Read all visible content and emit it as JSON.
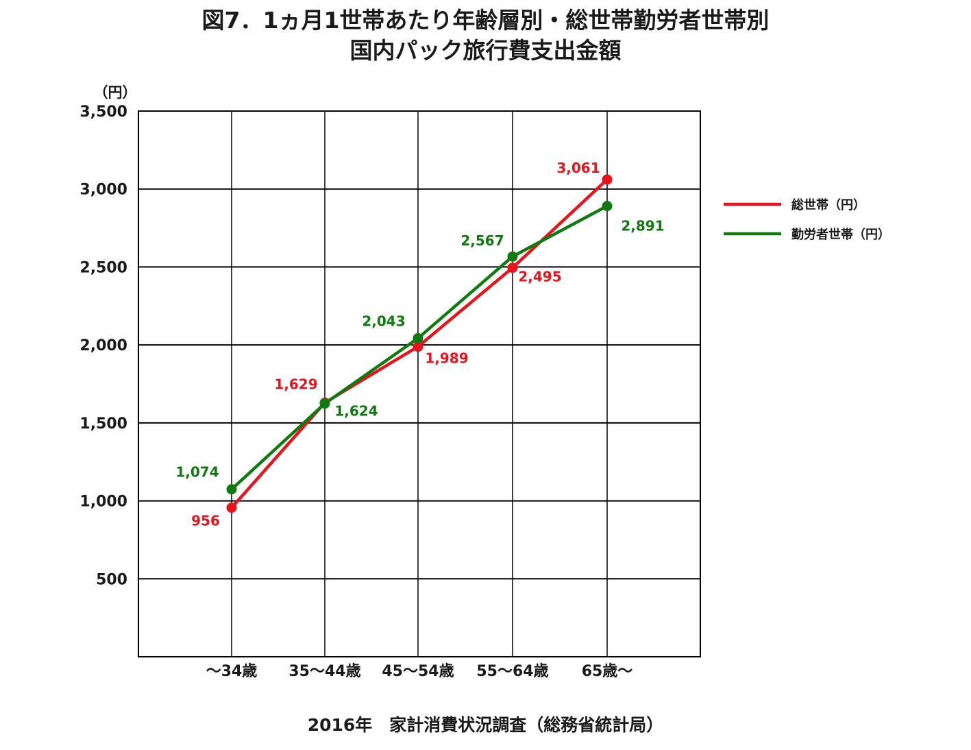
{
  "colors": {
    "total": "#e8141b",
    "workers": "#0f7a0f",
    "grid": "#000000"
  },
  "chart_data": {
    "type": "line",
    "title": "図7．1ヵ月1世帯あたり年齢層別・総世帯勤労者世帯別",
    "subtitle": "国内パック旅行費支出金額",
    "ylabel": "（円）",
    "ylim": [
      0,
      3500
    ],
    "yticks": [
      500,
      1000,
      1500,
      2000,
      2500,
      3000,
      3500
    ],
    "ytick_labels": [
      "500",
      "1,000",
      "1,500",
      "2,000",
      "2,500",
      "3,000",
      "3,500"
    ],
    "categories": [
      "～34歳",
      "35～44歳",
      "45～54歳",
      "55～64歳",
      "65歳～"
    ],
    "grid": true,
    "legend_position": "right",
    "series": [
      {
        "name": "総世帯（円）",
        "color": "#e8141b",
        "values": [
          956,
          1629,
          1989,
          2495,
          3061
        ],
        "labels": [
          "956",
          "1,629",
          "1,989",
          "2,495",
          "3,061"
        ]
      },
      {
        "name": "勤労者世帯（円）",
        "color": "#0f7a0f",
        "values": [
          1074,
          1624,
          2043,
          2567,
          2891
        ],
        "labels": [
          "1,074",
          "1,624",
          "2,043",
          "2,567",
          "2,891"
        ]
      }
    ],
    "source": "2016年　家計消費状況調査（総務省統計局）"
  }
}
